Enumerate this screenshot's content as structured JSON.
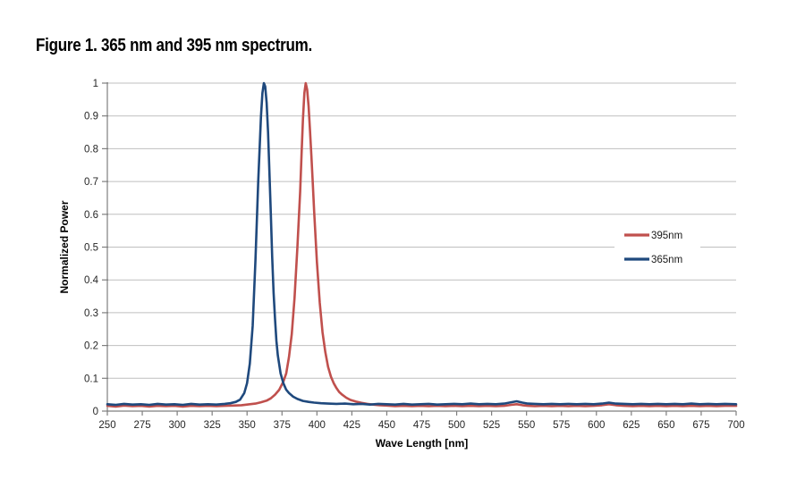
{
  "figure": {
    "title": "Figure 1. 365 nm and 395 nm spectrum."
  },
  "colors": {
    "background": "#FFFFFF",
    "grid": "#BFBFBF",
    "axis": "#7F7F7F",
    "tick_text": "#262626",
    "red_series": "#C0504D",
    "blue_series": "#1F497D"
  },
  "chart_data": {
    "type": "line",
    "title": "",
    "xlabel": "Wave Length [nm]",
    "ylabel": "Normalized Power",
    "xlim": [
      250,
      700
    ],
    "ylim": [
      0,
      1
    ],
    "x_ticks": [
      250,
      275,
      300,
      325,
      350,
      375,
      400,
      425,
      450,
      475,
      500,
      525,
      550,
      575,
      600,
      625,
      650,
      675,
      700
    ],
    "y_ticks": [
      "0",
      "0.1",
      "0.2",
      "0.3",
      "0.4",
      "0.5",
      "0.6",
      "0.7",
      "0.8",
      "0.9",
      "1"
    ],
    "grid": "horizontal",
    "legend_position": "right-middle",
    "legend_entries": [
      "395nm",
      "365nm"
    ],
    "series": [
      {
        "name": "395nm",
        "color": "#C0504D",
        "peak_nm": 392,
        "peak_value": 1.0,
        "points": [
          [
            250,
            0.016
          ],
          [
            256,
            0.014
          ],
          [
            262,
            0.017
          ],
          [
            268,
            0.015
          ],
          [
            274,
            0.016
          ],
          [
            280,
            0.014
          ],
          [
            286,
            0.016
          ],
          [
            292,
            0.015
          ],
          [
            298,
            0.016
          ],
          [
            304,
            0.014
          ],
          [
            310,
            0.016
          ],
          [
            316,
            0.015
          ],
          [
            322,
            0.016
          ],
          [
            328,
            0.015
          ],
          [
            334,
            0.016
          ],
          [
            340,
            0.017
          ],
          [
            346,
            0.018
          ],
          [
            352,
            0.021
          ],
          [
            356,
            0.023
          ],
          [
            360,
            0.027
          ],
          [
            364,
            0.032
          ],
          [
            367,
            0.039
          ],
          [
            370,
            0.05
          ],
          [
            373,
            0.065
          ],
          [
            376,
            0.09
          ],
          [
            378,
            0.115
          ],
          [
            380,
            0.165
          ],
          [
            382,
            0.235
          ],
          [
            384,
            0.345
          ],
          [
            386,
            0.5
          ],
          [
            388,
            0.67
          ],
          [
            389,
            0.78
          ],
          [
            390,
            0.89
          ],
          [
            391,
            0.97
          ],
          [
            392,
            1.0
          ],
          [
            393,
            0.98
          ],
          [
            394,
            0.93
          ],
          [
            395,
            0.86
          ],
          [
            396,
            0.78
          ],
          [
            397,
            0.7
          ],
          [
            398,
            0.61
          ],
          [
            399,
            0.53
          ],
          [
            400,
            0.455
          ],
          [
            402,
            0.33
          ],
          [
            404,
            0.24
          ],
          [
            406,
            0.18
          ],
          [
            408,
            0.135
          ],
          [
            410,
            0.105
          ],
          [
            412,
            0.085
          ],
          [
            414,
            0.07
          ],
          [
            416,
            0.058
          ],
          [
            418,
            0.05
          ],
          [
            421,
            0.041
          ],
          [
            424,
            0.034
          ],
          [
            428,
            0.029
          ],
          [
            432,
            0.025
          ],
          [
            436,
            0.022
          ],
          [
            440,
            0.02
          ],
          [
            445,
            0.018
          ],
          [
            450,
            0.017
          ],
          [
            456,
            0.015
          ],
          [
            462,
            0.016
          ],
          [
            468,
            0.015
          ],
          [
            474,
            0.016
          ],
          [
            480,
            0.015
          ],
          [
            486,
            0.016
          ],
          [
            492,
            0.015
          ],
          [
            498,
            0.016
          ],
          [
            504,
            0.015
          ],
          [
            510,
            0.016
          ],
          [
            516,
            0.015
          ],
          [
            522,
            0.016
          ],
          [
            528,
            0.015
          ],
          [
            534,
            0.016
          ],
          [
            539,
            0.019
          ],
          [
            543,
            0.021
          ],
          [
            547,
            0.018
          ],
          [
            551,
            0.016
          ],
          [
            556,
            0.015
          ],
          [
            562,
            0.016
          ],
          [
            568,
            0.015
          ],
          [
            574,
            0.016
          ],
          [
            580,
            0.015
          ],
          [
            586,
            0.016
          ],
          [
            592,
            0.015
          ],
          [
            598,
            0.016
          ],
          [
            604,
            0.018
          ],
          [
            609,
            0.021
          ],
          [
            614,
            0.018
          ],
          [
            620,
            0.016
          ],
          [
            626,
            0.015
          ],
          [
            632,
            0.016
          ],
          [
            638,
            0.015
          ],
          [
            644,
            0.016
          ],
          [
            650,
            0.015
          ],
          [
            656,
            0.016
          ],
          [
            662,
            0.015
          ],
          [
            668,
            0.016
          ],
          [
            674,
            0.015
          ],
          [
            680,
            0.016
          ],
          [
            686,
            0.015
          ],
          [
            692,
            0.016
          ],
          [
            700,
            0.016
          ]
        ]
      },
      {
        "name": "365nm",
        "color": "#1F497D",
        "peak_nm": 362,
        "peak_value": 1.0,
        "points": [
          [
            250,
            0.021
          ],
          [
            256,
            0.019
          ],
          [
            262,
            0.022
          ],
          [
            268,
            0.02
          ],
          [
            274,
            0.021
          ],
          [
            280,
            0.019
          ],
          [
            286,
            0.022
          ],
          [
            292,
            0.02
          ],
          [
            298,
            0.021
          ],
          [
            304,
            0.019
          ],
          [
            310,
            0.022
          ],
          [
            316,
            0.02
          ],
          [
            322,
            0.021
          ],
          [
            328,
            0.02
          ],
          [
            334,
            0.022
          ],
          [
            338,
            0.024
          ],
          [
            342,
            0.028
          ],
          [
            345,
            0.035
          ],
          [
            348,
            0.055
          ],
          [
            350,
            0.085
          ],
          [
            352,
            0.145
          ],
          [
            354,
            0.26
          ],
          [
            356,
            0.46
          ],
          [
            358,
            0.7
          ],
          [
            360,
            0.9
          ],
          [
            361,
            0.97
          ],
          [
            362,
            1.0
          ],
          [
            363,
            0.99
          ],
          [
            364,
            0.94
          ],
          [
            365,
            0.85
          ],
          [
            366,
            0.73
          ],
          [
            367,
            0.6
          ],
          [
            368,
            0.47
          ],
          [
            369,
            0.36
          ],
          [
            370,
            0.28
          ],
          [
            371,
            0.215
          ],
          [
            372,
            0.17
          ],
          [
            374,
            0.115
          ],
          [
            376,
            0.085
          ],
          [
            378,
            0.065
          ],
          [
            380,
            0.055
          ],
          [
            383,
            0.044
          ],
          [
            386,
            0.037
          ],
          [
            390,
            0.031
          ],
          [
            394,
            0.028
          ],
          [
            398,
            0.026
          ],
          [
            403,
            0.024
          ],
          [
            408,
            0.023
          ],
          [
            414,
            0.022
          ],
          [
            420,
            0.023
          ],
          [
            426,
            0.021
          ],
          [
            432,
            0.022
          ],
          [
            438,
            0.02
          ],
          [
            444,
            0.022
          ],
          [
            450,
            0.021
          ],
          [
            456,
            0.02
          ],
          [
            462,
            0.022
          ],
          [
            468,
            0.02
          ],
          [
            474,
            0.021
          ],
          [
            480,
            0.022
          ],
          [
            486,
            0.02
          ],
          [
            492,
            0.021
          ],
          [
            498,
            0.022
          ],
          [
            504,
            0.021
          ],
          [
            510,
            0.023
          ],
          [
            516,
            0.021
          ],
          [
            522,
            0.022
          ],
          [
            528,
            0.021
          ],
          [
            534,
            0.023
          ],
          [
            539,
            0.027
          ],
          [
            543,
            0.03
          ],
          [
            547,
            0.026
          ],
          [
            551,
            0.023
          ],
          [
            556,
            0.022
          ],
          [
            562,
            0.021
          ],
          [
            568,
            0.022
          ],
          [
            574,
            0.021
          ],
          [
            580,
            0.022
          ],
          [
            586,
            0.021
          ],
          [
            592,
            0.022
          ],
          [
            598,
            0.021
          ],
          [
            604,
            0.023
          ],
          [
            609,
            0.026
          ],
          [
            614,
            0.023
          ],
          [
            620,
            0.022
          ],
          [
            626,
            0.021
          ],
          [
            632,
            0.022
          ],
          [
            638,
            0.021
          ],
          [
            644,
            0.022
          ],
          [
            650,
            0.021
          ],
          [
            656,
            0.022
          ],
          [
            662,
            0.021
          ],
          [
            668,
            0.023
          ],
          [
            674,
            0.021
          ],
          [
            680,
            0.022
          ],
          [
            686,
            0.021
          ],
          [
            692,
            0.022
          ],
          [
            700,
            0.021
          ]
        ]
      }
    ]
  }
}
